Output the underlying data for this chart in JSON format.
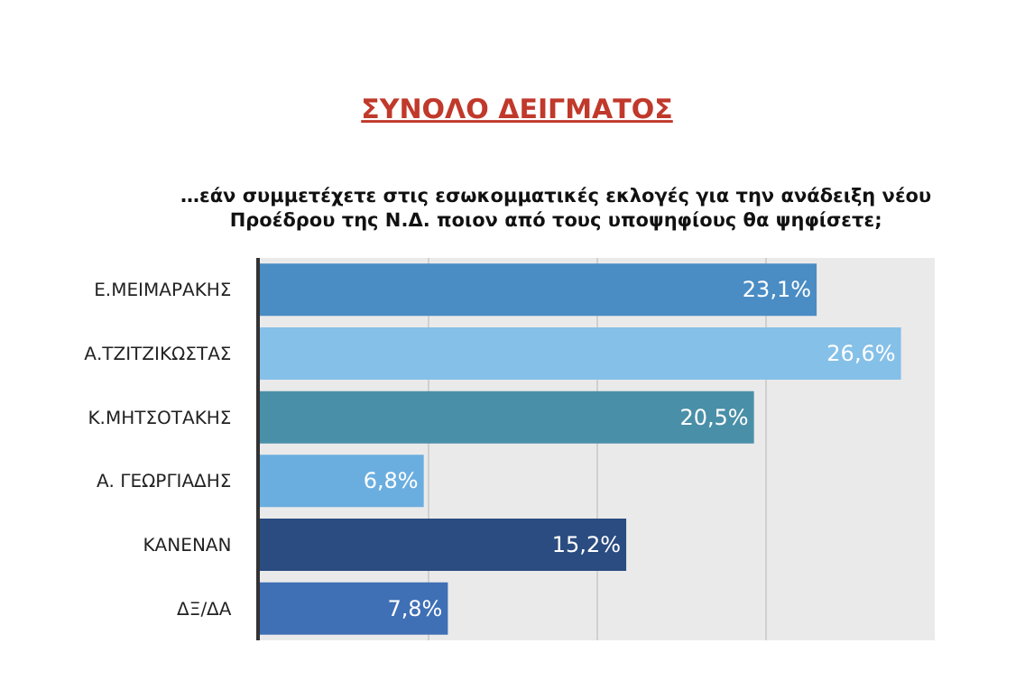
{
  "chart_data": {
    "type": "bar",
    "orientation": "horizontal",
    "title": "ΣΥΝΟΛΟ ΔΕΙΓΜΑΤΟΣ",
    "subtitle": "…εάν συμμετέχετε στις εσωκομματικές εκλογές για την ανάδειξη νέου\nΠροέδρου της Ν.Δ. ποιον από τους υποψηφίους θα ψηφίσετε;",
    "categories": [
      "Ε.ΜΕΙΜΑΡΑΚΗΣ",
      "Α.ΤΖΙΤΖΙΚΩΣΤΑΣ",
      "Κ.ΜΗΤΣΟΤΑΚΗΣ",
      "Α. ΓΕΩΡΓΙΑΔΗΣ",
      "ΚΑΝΕΝΑΝ",
      "ΔΞ/ΔΑ"
    ],
    "values": [
      23.1,
      26.6,
      20.5,
      6.8,
      15.2,
      7.8
    ],
    "value_labels": [
      "23,1%",
      "26,6%",
      "20,5%",
      "6,8%",
      "15,2%",
      "7,8%"
    ],
    "colors": [
      "#4a8cc4",
      "#85c0e8",
      "#4a8fa8",
      "#6aaee0",
      "#2a4c80",
      "#3f6fb5"
    ],
    "xlim": [
      0,
      28
    ],
    "xticks": [
      {
        "value": 7,
        "label": null
      },
      {
        "value": 14,
        "label": null
      },
      {
        "value": 21,
        "label": null
      },
      {
        "value": 28,
        "label": null
      }
    ],
    "tick_labels": "y",
    "grid": "x",
    "legend": false
  }
}
